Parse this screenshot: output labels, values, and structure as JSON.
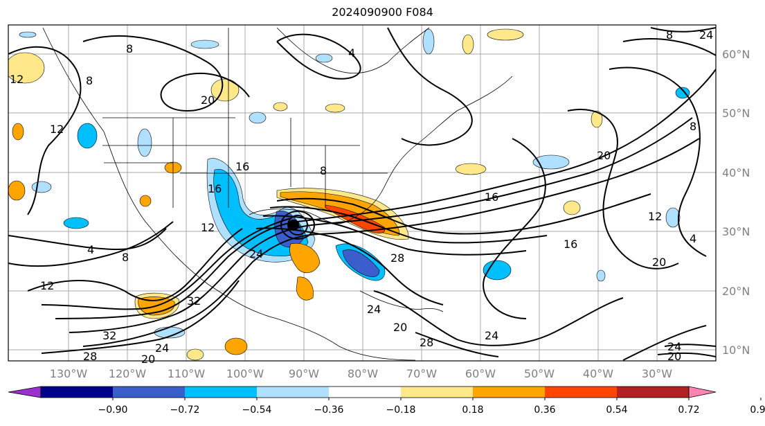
{
  "title": "2024090900 F084",
  "map": {
    "lon_labels": [
      "130°W",
      "120°W",
      "110°W",
      "100°W",
      "90°W",
      "80°W",
      "70°W",
      "60°W",
      "50°W",
      "40°W",
      "30°W"
    ],
    "lat_labels": [
      "60°N",
      "50°N",
      "40°N",
      "30°N",
      "20°N",
      "10°N"
    ],
    "contour_labels": [
      "8",
      "4",
      "8",
      "20",
      "12",
      "12",
      "8",
      "16",
      "16",
      "12",
      "4",
      "8",
      "12",
      "32",
      "32",
      "28",
      "20",
      "24",
      "24",
      "16",
      "16",
      "24",
      "28",
      "20",
      "28",
      "24",
      "8",
      "20",
      "12",
      "4",
      "20",
      "24",
      "20",
      "8",
      "24"
    ],
    "storm_marker": "filled-black-circle"
  },
  "colorbar": {
    "tick_labels": [
      "−0.90",
      "−0.72",
      "−0.54",
      "−0.36",
      "−0.18",
      "0.18",
      "0.36",
      "0.54",
      "0.72",
      "0.90"
    ],
    "colors": [
      "#9932cc",
      "#00008b",
      "#3a5fcd",
      "#00bfff",
      "#b0e0ff",
      "#ffffff",
      "#ffe88a",
      "#ffa500",
      "#ff4500",
      "#b22222",
      "#ff85b0"
    ]
  }
}
